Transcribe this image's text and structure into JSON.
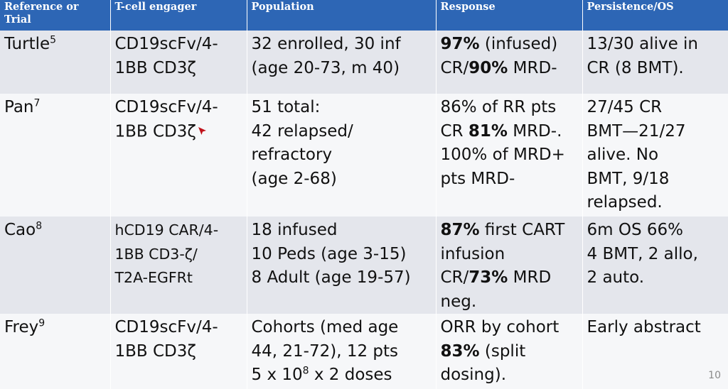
{
  "headers": [
    "Reference or Trial",
    "T-cell engager",
    "Population",
    "Response",
    "Persistence/OS"
  ],
  "rows": [
    {
      "ref": "Turtle",
      "ref_sup": "5",
      "engager": [
        "CD19scFv/4-",
        "1BB CD3ζ"
      ],
      "population": [
        "32 enrolled, 30 inf",
        "(age 20-73, m 40)"
      ],
      "response": [
        {
          "b": "97%",
          "t": " (infused)"
        },
        {
          "t": "CR/",
          "b": "90%",
          "t2": " MRD-"
        }
      ],
      "persistence": [
        "13/30 alive in",
        "CR (8 BMT)."
      ]
    },
    {
      "ref": "Pan",
      "ref_sup": "7",
      "engager": [
        "CD19scFv/4-",
        "1BB CD3ζ"
      ],
      "population": [
        "51 total:",
        "42 relapsed/",
        "refractory",
        "(age 2-68)"
      ],
      "response": [
        {
          "t": "86% of RR pts"
        },
        {
          "t": "CR ",
          "b": "81%",
          "t2": " MRD-."
        },
        {
          "t": "100% of MRD+"
        },
        {
          "t": "pts MRD-"
        }
      ],
      "persistence": [
        "27/45 CR",
        "BMT—21/27",
        "alive.  No",
        "BMT, 9/18",
        "relapsed."
      ]
    },
    {
      "ref": "Cao",
      "ref_sup": "8",
      "engager": [
        "hCD19 CAR/4-",
        "1BB CD3-ζ/",
        "T2A-EGFRt"
      ],
      "population": [
        "18 infused",
        "10 Peds (age 3-15)",
        "8 Adult (age 19-57)"
      ],
      "response": [
        {
          "b": "87%",
          "t": " first CART"
        },
        {
          "t": "infusion"
        },
        {
          "t": "CR/",
          "b": "73%",
          "t2": " MRD"
        },
        {
          "t": "neg."
        }
      ],
      "persistence": [
        "6m OS 66%",
        "4 BMT, 2 allo,",
        "2 auto."
      ]
    },
    {
      "ref": "Frey",
      "ref_sup": "9",
      "engager": [
        "CD19scFv/4-",
        "1BB CD3ζ"
      ],
      "population": [
        "Cohorts (med age",
        "44, 21-72), 12 pts"
      ],
      "population_dose": {
        "a": "5 x 10",
        "sup": "8",
        "b": " x 2 doses"
      },
      "response": [
        {
          "t": "ORR by cohort"
        },
        {
          "b": "83%",
          "t": " (split"
        },
        {
          "t": "dosing)."
        }
      ],
      "persistence": [
        "Early abstract"
      ]
    }
  ],
  "page_number": "10",
  "cursor_icon": "pointer-cursor-icon",
  "colors": {
    "header_bg": "#2d66b5",
    "band_bg": "#e4e6ec",
    "plain_bg": "#f6f7f9",
    "cursor": "#c0121b"
  }
}
